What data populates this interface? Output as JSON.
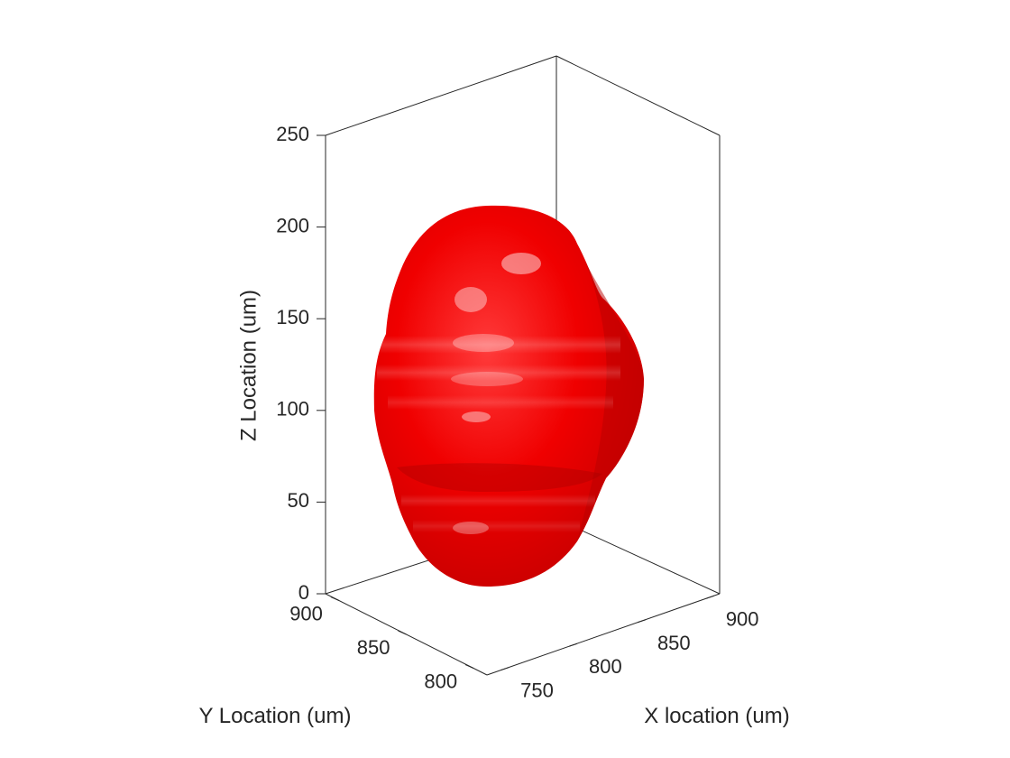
{
  "chart_data": {
    "type": "surface3d",
    "title": "",
    "xlabel": "X location (um)",
    "ylabel": "Y Location (um)",
    "zlabel": "Z Location (um)",
    "xlim": [
      740,
      910
    ],
    "ylim": [
      790,
      910
    ],
    "zlim": [
      0,
      250
    ],
    "x_ticks": [
      "750",
      "800",
      "850",
      "900"
    ],
    "y_ticks": [
      "800",
      "850",
      "900"
    ],
    "z_ticks": [
      "0",
      "50",
      "100",
      "150",
      "200",
      "250"
    ],
    "grid": false,
    "box": true,
    "surface": {
      "shape": "irregular ellipsoidal blob",
      "color": "#e00000",
      "z_range": [
        0,
        210
      ]
    }
  }
}
